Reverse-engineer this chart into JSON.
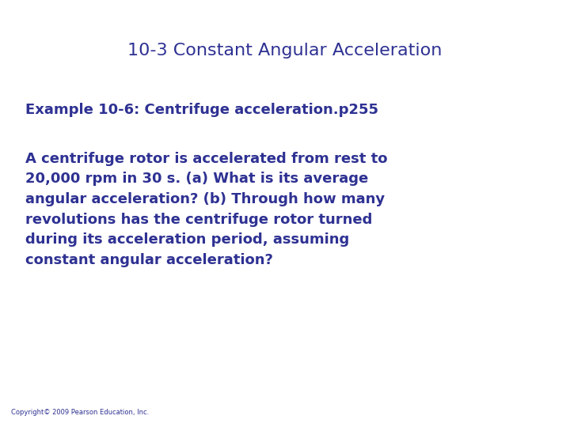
{
  "title": "10-3 Constant Angular Acceleration",
  "title_color": "#2E3192",
  "title_fontsize": 16,
  "title_fontweight": "normal",
  "subtitle": "Example 10-6: Centrifuge acceleration.p255",
  "subtitle_color": "#2E3192",
  "subtitle_fontsize": 13,
  "body": "A centrifuge rotor is accelerated from rest to\n20,000 rpm in 30 s. (a) What is its average\nangular acceleration? (b) Through how many\nrevolutions has the centrifuge rotor turned\nduring its acceleration period, assuming\nconstant angular acceleration?",
  "body_color": "#2E3192",
  "body_fontsize": 13,
  "copyright": "Copyright© 2009 Pearson Education, Inc.",
  "copyright_fontsize": 6,
  "copyright_color": "#2E3192",
  "background_color": "#ffffff"
}
